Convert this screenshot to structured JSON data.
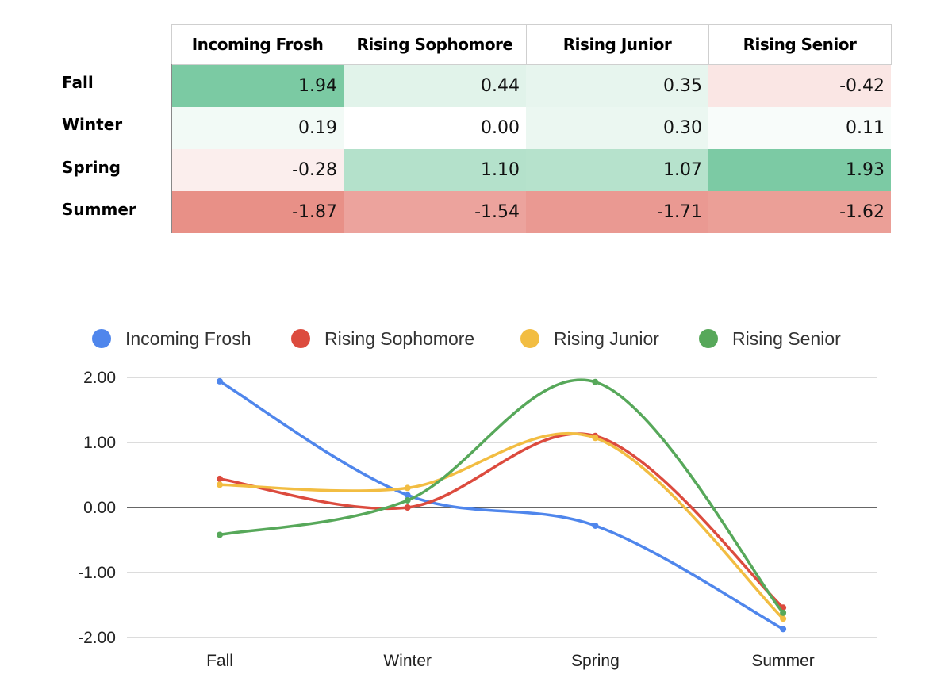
{
  "table": {
    "columns": [
      "Incoming Frosh",
      "Rising Sophomore",
      "Rising Junior",
      "Rising Senior"
    ],
    "rows": [
      {
        "label": "Fall",
        "values": [
          "1.94",
          "0.44",
          "0.35",
          "-0.42"
        ]
      },
      {
        "label": "Winter",
        "values": [
          "0.19",
          "0.00",
          "0.30",
          "0.11"
        ]
      },
      {
        "label": "Spring",
        "values": [
          "-0.28",
          "1.10",
          "1.07",
          "1.93"
        ]
      },
      {
        "label": "Summer",
        "values": [
          "-1.87",
          "-1.54",
          "-1.71",
          "-1.62"
        ]
      }
    ],
    "scale_colors": {
      "max": "#57bb8a",
      "mid": "#ffffff",
      "min": "#e06c61"
    }
  },
  "chart_data": {
    "type": "line",
    "categories": [
      "Fall",
      "Winter",
      "Spring",
      "Summer"
    ],
    "series": [
      {
        "name": "Incoming Frosh",
        "color": "#4f86ec",
        "values": [
          1.94,
          0.19,
          -0.28,
          -1.87
        ]
      },
      {
        "name": "Rising Sophomore",
        "color": "#dc4b3e",
        "values": [
          0.44,
          0.0,
          1.1,
          -1.54
        ]
      },
      {
        "name": "Rising Junior",
        "color": "#f2bd42",
        "values": [
          0.35,
          0.3,
          1.07,
          -1.71
        ]
      },
      {
        "name": "Rising Senior",
        "color": "#57a85a",
        "values": [
          -0.42,
          0.11,
          1.93,
          -1.62
        ]
      }
    ],
    "ylim": [
      -2,
      2
    ],
    "yticks": [
      "2.00",
      "1.00",
      "0.00",
      "-1.00",
      "-2.00"
    ],
    "ytick_values": [
      2,
      1,
      0,
      -1,
      -2
    ],
    "legend": "top",
    "grid": true,
    "curve": "smooth"
  }
}
